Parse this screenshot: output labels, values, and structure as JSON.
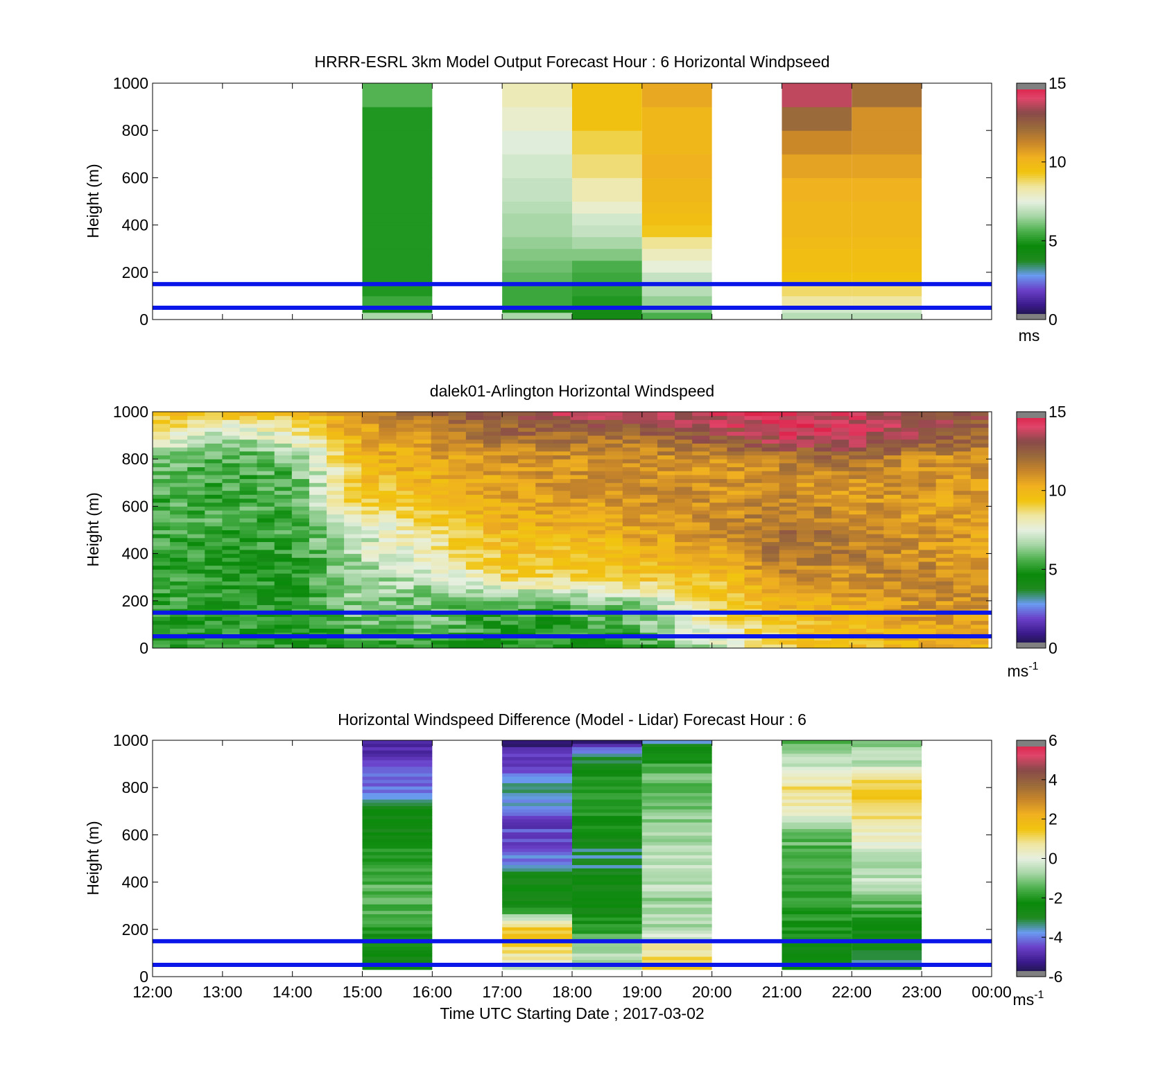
{
  "figure": {
    "xlabel": "Time UTC  Starting Date ; 2017-03-02",
    "x_ticks": [
      "12:00",
      "13:00",
      "14:00",
      "15:00",
      "16:00",
      "17:00",
      "18:00",
      "19:00",
      "20:00",
      "21:00",
      "22:00",
      "23:00",
      "00:00"
    ],
    "ylabel": "Height (m)",
    "y_ticks": [
      "0",
      "200",
      "400",
      "600",
      "800",
      "1000"
    ]
  },
  "colors": {
    "reference_line": "#0a17e8",
    "speed_colormap": [
      "#141432",
      "#3a1a8a",
      "#6a3fc8",
      "#6a9bf0",
      "#1f8a1f",
      "#0a8a0a",
      "#4cb04c",
      "#a6d6a6",
      "#e6f0e0",
      "#efe6a0",
      "#f1c40f",
      "#f0b020",
      "#c8862a",
      "#9a6a3a",
      "#8a4a4a",
      "#e0456a",
      "#dc143c"
    ],
    "diff_colormap": [
      "#141432",
      "#3a1a8a",
      "#6a3fc8",
      "#6a9bf0",
      "#1f8a1f",
      "#0a8a0a",
      "#4cb04c",
      "#a6d6a6",
      "#e6f0e0",
      "#efe6a0",
      "#f1c40f",
      "#f0b020",
      "#c8862a",
      "#9a6a3a",
      "#8a4a4a",
      "#e0456a",
      "#dc143c"
    ]
  },
  "chart_data": [
    {
      "type": "heatmap",
      "title": "HRRR-ESRL 3km Model Output   Forecast Hour : 6 Horizontal Windpseed",
      "xlabel": "",
      "ylabel": "Height (m)",
      "xlim": [
        0,
        12
      ],
      "ylim": [
        0,
        1000
      ],
      "colorbar": {
        "range": [
          0,
          15
        ],
        "ticks": [
          "0",
          "5",
          "10",
          "15"
        ],
        "unit_label": "ms",
        "unit_sup": ""
      },
      "reference_lines_m": [
        50,
        150
      ],
      "height_levels_m": [
        0,
        30,
        50,
        100,
        150,
        200,
        250,
        300,
        350,
        400,
        450,
        500,
        600,
        700,
        800,
        900,
        1000
      ],
      "columns": [
        {
          "start_hour_utc": 15,
          "speed_ms": [
            6.6,
            4.2,
            5.4,
            5.0,
            5.0,
            5.0,
            5.0,
            5.0,
            5.0,
            5.0,
            5.0,
            5.0,
            5.0,
            5.0,
            5.0,
            5.7
          ]
        },
        {
          "start_hour_utc": 17,
          "speed_ms": [
            6.6,
            4.2,
            5.4,
            5.4,
            5.8,
            6.0,
            6.2,
            6.4,
            6.6,
            6.6,
            6.8,
            7.0,
            7.2,
            7.4,
            7.8,
            8.1
          ]
        },
        {
          "start_hour_utc": 18,
          "speed_ms": [
            4.2,
            4.2,
            5.0,
            5.2,
            5.4,
            5.6,
            6.2,
            6.6,
            7.0,
            7.2,
            7.8,
            8.2,
            8.7,
            9.0,
            9.5,
            9.5
          ]
        },
        {
          "start_hour_utc": 19,
          "speed_ms": [
            5.6,
            6.2,
            6.4,
            6.8,
            7.0,
            7.6,
            8.0,
            8.5,
            9.3,
            9.6,
            9.8,
            10.0,
            10.2,
            10.0,
            10.0,
            10.5
          ]
        },
        {
          "start_hour_utc": 21,
          "speed_ms": [
            6.8,
            7.2,
            8.4,
            8.8,
            9.4,
            9.6,
            9.6,
            9.8,
            10.0,
            10.0,
            10.0,
            10.2,
            10.6,
            11.2,
            12.2,
            13.7
          ]
        },
        {
          "start_hour_utc": 22,
          "speed_ms": [
            6.8,
            7.2,
            8.4,
            8.8,
            9.4,
            9.6,
            9.6,
            9.8,
            10.0,
            10.0,
            10.0,
            10.2,
            10.6,
            11.0,
            11.0,
            12.0
          ]
        }
      ]
    },
    {
      "type": "heatmap",
      "title": "dalek01-Arlington  Horizontal Windspeed",
      "xlabel": "",
      "ylabel": "Height (m)",
      "xlim": [
        0,
        12
      ],
      "ylim": [
        0,
        1000
      ],
      "colorbar": {
        "range": [
          0,
          15
        ],
        "ticks": [
          "0",
          "5",
          "10",
          "15"
        ],
        "unit_label": "ms",
        "unit_sup": "-1"
      },
      "reference_lines_m": [
        50,
        150
      ],
      "x_profile_hours_utc": [
        0,
        1,
        2,
        3,
        4,
        5,
        6,
        7,
        8,
        9,
        10,
        11,
        12
      ],
      "height_profile_m": [
        0,
        100,
        200,
        300,
        400,
        500,
        600,
        700,
        800,
        900,
        1000
      ],
      "speed_ms_by_hour": [
        [
          5.0,
          5.0,
          5.5,
          5.5,
          5.5,
          5.5,
          5.5,
          5.5,
          6.0,
          9.0,
          9.5
        ],
        [
          5.0,
          5.0,
          5.0,
          5.0,
          5.0,
          5.5,
          5.5,
          5.5,
          5.5,
          6.5,
          9.5
        ],
        [
          5.0,
          5.0,
          5.0,
          5.0,
          5.0,
          5.5,
          5.5,
          5.5,
          6.0,
          8.0,
          10.0
        ],
        [
          5.0,
          6.0,
          6.5,
          6.5,
          7.0,
          7.0,
          9.0,
          9.5,
          10.0,
          10.5,
          11.0
        ],
        [
          5.0,
          6.0,
          6.0,
          7.0,
          8.0,
          9.0,
          9.5,
          10.0,
          10.5,
          11.0,
          12.0
        ],
        [
          5.0,
          5.0,
          5.5,
          9.0,
          9.5,
          10.0,
          10.5,
          10.5,
          11.0,
          12.0,
          13.0
        ],
        [
          5.0,
          5.0,
          6.0,
          9.0,
          9.5,
          10.0,
          10.5,
          11.0,
          11.0,
          12.0,
          14.0
        ],
        [
          5.0,
          6.0,
          6.5,
          9.5,
          10.0,
          10.5,
          11.0,
          11.0,
          11.0,
          12.0,
          14.0
        ],
        [
          7.0,
          8.0,
          9.0,
          9.5,
          10.5,
          11.0,
          11.0,
          11.0,
          11.0,
          13.0,
          14.0
        ],
        [
          9.0,
          9.5,
          10.0,
          11.0,
          12.0,
          12.0,
          11.5,
          11.0,
          11.5,
          14.0,
          14.0
        ],
        [
          9.5,
          10.0,
          10.5,
          11.0,
          11.5,
          11.5,
          11.0,
          11.0,
          12.0,
          14.0,
          14.0
        ],
        [
          10.0,
          10.5,
          11.0,
          11.5,
          11.0,
          11.0,
          10.5,
          11.0,
          11.0,
          13.0,
          13.0
        ],
        [
          10.0,
          10.5,
          11.0,
          11.0,
          10.5,
          10.5,
          10.5,
          11.0,
          11.0,
          12.0,
          13.0
        ]
      ]
    },
    {
      "type": "heatmap",
      "title": "Horizontal Windspeed Difference (Model - Lidar) Forecast Hour : 6",
      "xlabel": "Time UTC  Starting Date ; 2017-03-02",
      "ylabel": "Height (m)",
      "xlim": [
        0,
        12
      ],
      "ylim": [
        0,
        1000
      ],
      "colorbar": {
        "range": [
          -6,
          6
        ],
        "ticks": [
          "-6",
          "-4",
          "-2",
          "0",
          "2",
          "4",
          "6"
        ],
        "unit_label": "ms",
        "unit_sup": "-1"
      },
      "reference_lines_m": [
        50,
        150
      ],
      "columns": [
        {
          "start_hour_utc": 15,
          "height_profile_m": [
            0,
            100,
            200,
            300,
            400,
            500,
            600,
            700,
            800,
            900,
            1000
          ],
          "diff_ms": [
            -2.5,
            -2.5,
            -2.0,
            -1.5,
            -1.5,
            -2.0,
            -2.5,
            -2.6,
            -4.0,
            -4.6,
            -5.2
          ]
        },
        {
          "start_hour_utc": 17,
          "height_profile_m": [
            0,
            100,
            200,
            300,
            400,
            500,
            600,
            700,
            800,
            900,
            1000
          ],
          "diff_ms": [
            -1.5,
            1.0,
            1.5,
            -2.5,
            -2.6,
            -4.0,
            -4.6,
            -4.2,
            -3.0,
            -4.5,
            -5.5
          ]
        },
        {
          "start_hour_utc": 18,
          "height_profile_m": [
            0,
            100,
            200,
            300,
            400,
            500,
            600,
            700,
            800,
            900,
            1000
          ],
          "diff_ms": [
            -1.0,
            -0.5,
            -2.0,
            -2.6,
            -2.6,
            -3.5,
            -2.6,
            -2.0,
            -2.0,
            -2.6,
            -5.5
          ]
        },
        {
          "start_hour_utc": 19,
          "height_profile_m": [
            0,
            100,
            200,
            300,
            400,
            500,
            600,
            700,
            800,
            900,
            1000
          ],
          "diff_ms": [
            1.5,
            1.0,
            -0.8,
            -0.8,
            -0.5,
            -0.3,
            -0.8,
            -1.0,
            -1.2,
            -1.6,
            -3.5
          ]
        },
        {
          "start_hour_utc": 21,
          "height_profile_m": [
            0,
            100,
            200,
            300,
            400,
            500,
            600,
            700,
            800,
            900,
            1000
          ],
          "diff_ms": [
            -2.5,
            -2.5,
            -2.2,
            -2.0,
            -1.8,
            -1.6,
            -1.2,
            0.5,
            1.0,
            -0.5,
            -1.5
          ]
        },
        {
          "start_hour_utc": 22,
          "height_profile_m": [
            0,
            100,
            200,
            300,
            400,
            500,
            600,
            700,
            800,
            900,
            1000
          ],
          "diff_ms": [
            -3.5,
            -3.0,
            -2.5,
            -1.5,
            -0.5,
            -0.5,
            0.3,
            1.2,
            1.5,
            -0.5,
            -1.0
          ]
        }
      ]
    }
  ]
}
